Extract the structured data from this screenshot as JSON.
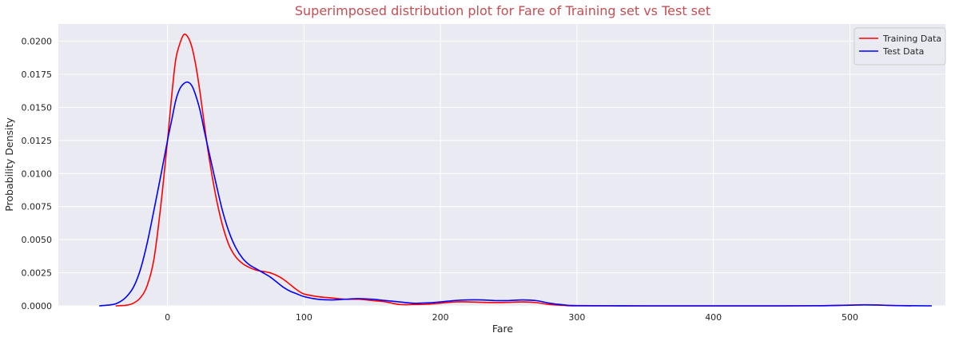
{
  "chart_data": {
    "type": "line",
    "title": "Superimposed distribution plot for Fare of Training set vs Test set",
    "title_color": "#c44e52",
    "xlabel": "Fare",
    "ylabel": "Probability Density",
    "xlim": [
      -80,
      570
    ],
    "ylim": [
      0,
      0.0213
    ],
    "xticks": [
      0,
      100,
      200,
      300,
      400,
      500
    ],
    "xtick_labels": [
      "0",
      "100",
      "200",
      "300",
      "400",
      "500"
    ],
    "yticks": [
      0,
      0.0025,
      0.005,
      0.0075,
      0.01,
      0.0125,
      0.015,
      0.0175,
      0.02
    ],
    "ytick_labels": [
      "0.0000",
      "0.0025",
      "0.0050",
      "0.0075",
      "0.0100",
      "0.0125",
      "0.0150",
      "0.0175",
      "0.0200"
    ],
    "grid": true,
    "background": "#eaeaf2",
    "legend_position": "top-right",
    "series": [
      {
        "name": "Training Data",
        "color": "#ff0000",
        "points": [
          [
            -38,
            0
          ],
          [
            -30,
            5e-05
          ],
          [
            -25,
            0.0002
          ],
          [
            -20,
            0.0006
          ],
          [
            -15,
            0.0015
          ],
          [
            -10,
            0.0035
          ],
          [
            -5,
            0.0075
          ],
          [
            0,
            0.0125
          ],
          [
            3,
            0.0158
          ],
          [
            6,
            0.0186
          ],
          [
            9,
            0.0198
          ],
          [
            12,
            0.0205
          ],
          [
            15,
            0.0203
          ],
          [
            18,
            0.0195
          ],
          [
            21,
            0.018
          ],
          [
            24,
            0.016
          ],
          [
            27,
            0.0137
          ],
          [
            30,
            0.0115
          ],
          [
            35,
            0.0085
          ],
          [
            40,
            0.0062
          ],
          [
            45,
            0.0046
          ],
          [
            50,
            0.0037
          ],
          [
            55,
            0.0032
          ],
          [
            60,
            0.0029
          ],
          [
            65,
            0.0027
          ],
          [
            70,
            0.0026
          ],
          [
            75,
            0.0025
          ],
          [
            80,
            0.0023
          ],
          [
            85,
            0.002
          ],
          [
            90,
            0.0016
          ],
          [
            95,
            0.0012
          ],
          [
            100,
            0.0009
          ],
          [
            110,
            0.0007
          ],
          [
            120,
            0.0006
          ],
          [
            130,
            0.0005
          ],
          [
            140,
            0.0005
          ],
          [
            150,
            0.0004
          ],
          [
            160,
            0.0003
          ],
          [
            170,
            0.0001
          ],
          [
            180,
            0.0001
          ],
          [
            190,
            0.00012
          ],
          [
            200,
            0.0002
          ],
          [
            210,
            0.0003
          ],
          [
            220,
            0.0003
          ],
          [
            230,
            0.00027
          ],
          [
            240,
            0.00025
          ],
          [
            250,
            0.00027
          ],
          [
            260,
            0.0003
          ],
          [
            270,
            0.00025
          ],
          [
            280,
            0.0001
          ],
          [
            290,
            4e-05
          ],
          [
            300,
            0
          ],
          [
            350,
            0
          ],
          [
            400,
            0
          ],
          [
            450,
            0
          ],
          [
            480,
            1e-05
          ],
          [
            500,
            6e-05
          ],
          [
            510,
            8e-05
          ],
          [
            520,
            7e-05
          ],
          [
            530,
            3e-05
          ],
          [
            545,
            0
          ]
        ]
      },
      {
        "name": "Test Data",
        "color": "#0000ff",
        "points": [
          [
            -50,
            0
          ],
          [
            -40,
            0.0001
          ],
          [
            -35,
            0.0003
          ],
          [
            -30,
            0.0007
          ],
          [
            -25,
            0.0014
          ],
          [
            -20,
            0.0027
          ],
          [
            -15,
            0.0047
          ],
          [
            -10,
            0.0072
          ],
          [
            -5,
            0.0098
          ],
          [
            0,
            0.0125
          ],
          [
            3,
            0.014
          ],
          [
            6,
            0.0155
          ],
          [
            9,
            0.0164
          ],
          [
            12,
            0.0168
          ],
          [
            15,
            0.0169
          ],
          [
            18,
            0.0166
          ],
          [
            21,
            0.0158
          ],
          [
            24,
            0.0147
          ],
          [
            27,
            0.0132
          ],
          [
            30,
            0.0118
          ],
          [
            35,
            0.0095
          ],
          [
            40,
            0.0073
          ],
          [
            45,
            0.0056
          ],
          [
            50,
            0.0044
          ],
          [
            55,
            0.0036
          ],
          [
            60,
            0.0031
          ],
          [
            65,
            0.0028
          ],
          [
            70,
            0.0025
          ],
          [
            75,
            0.0022
          ],
          [
            80,
            0.0018
          ],
          [
            85,
            0.0014
          ],
          [
            90,
            0.0011
          ],
          [
            95,
            0.0009
          ],
          [
            100,
            0.0007
          ],
          [
            110,
            0.0005
          ],
          [
            120,
            0.00045
          ],
          [
            130,
            0.0005
          ],
          [
            140,
            0.00055
          ],
          [
            150,
            0.0005
          ],
          [
            160,
            0.0004
          ],
          [
            170,
            0.0003
          ],
          [
            180,
            0.0002
          ],
          [
            190,
            0.00022
          ],
          [
            200,
            0.0003
          ],
          [
            210,
            0.0004
          ],
          [
            220,
            0.00045
          ],
          [
            230,
            0.00045
          ],
          [
            240,
            0.0004
          ],
          [
            250,
            0.0004
          ],
          [
            260,
            0.00045
          ],
          [
            270,
            0.0004
          ],
          [
            280,
            0.0002
          ],
          [
            290,
            8e-05
          ],
          [
            300,
            2e-05
          ],
          [
            350,
            0
          ],
          [
            400,
            0
          ],
          [
            450,
            0
          ],
          [
            480,
            1e-05
          ],
          [
            500,
            5e-05
          ],
          [
            510,
            7e-05
          ],
          [
            520,
            6e-05
          ],
          [
            535,
            2e-05
          ],
          [
            560,
            0
          ]
        ]
      }
    ]
  }
}
